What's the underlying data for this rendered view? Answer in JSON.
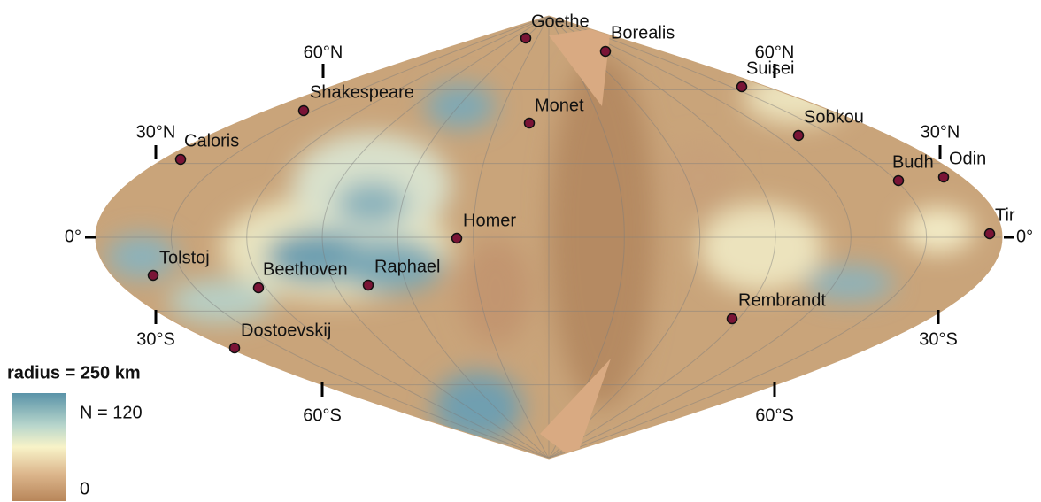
{
  "map": {
    "features": [
      {
        "label": "Goethe"
      },
      {
        "label": "Borealis"
      },
      {
        "label": "Suisei"
      },
      {
        "label": "Monet"
      },
      {
        "label": "Shakespeare"
      },
      {
        "label": "Caloris"
      },
      {
        "label": "Sobkou"
      },
      {
        "label": "Budh"
      },
      {
        "label": "Odin"
      },
      {
        "label": "Tir"
      },
      {
        "label": "Homer"
      },
      {
        "label": "Tolstoj"
      },
      {
        "label": "Beethoven"
      },
      {
        "label": "Raphael"
      },
      {
        "label": "Rembrandt"
      },
      {
        "label": "Dostoevskij"
      }
    ],
    "left_labels": [
      "60°N",
      "30°N",
      "0°",
      "30°S",
      "60°S"
    ],
    "right_labels": [
      "60°N",
      "30°N",
      "0°",
      "30°S",
      "60°S"
    ],
    "legend": {
      "title": "radius = 250 km",
      "max_label": "N = 120",
      "min_label": "0"
    }
  }
}
